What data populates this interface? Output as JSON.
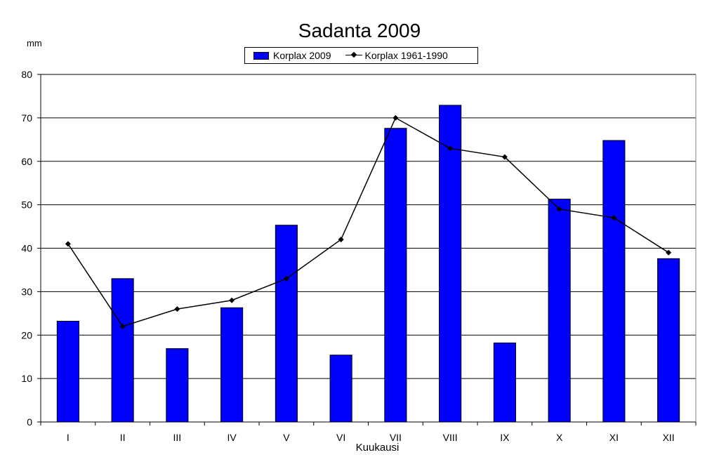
{
  "chart_data": {
    "type": "bar",
    "title": "Sadanta  2009",
    "ylabel": "mm",
    "xlabel": "Kuukausi",
    "ylim": [
      0,
      80
    ],
    "yticks": [
      0,
      10,
      20,
      30,
      40,
      50,
      60,
      70,
      80
    ],
    "grid": true,
    "legend_position": "top-center",
    "categories": [
      "I",
      "II",
      "III",
      "IV",
      "V",
      "VI",
      "VII",
      "VIII",
      "IX",
      "X",
      "XI",
      "XII"
    ],
    "series": [
      {
        "name": "Korplax 2009",
        "type": "bar",
        "color": "#0000ff",
        "values": [
          23.2,
          33,
          16.9,
          26.3,
          45.3,
          15.4,
          67.6,
          72.9,
          18.2,
          51.3,
          64.8,
          37.6
        ]
      },
      {
        "name": "Korplax 1961-1990",
        "type": "line",
        "color": "#000000",
        "marker": "diamond",
        "values": [
          41,
          22,
          26,
          28,
          33,
          42,
          70,
          63,
          61,
          49,
          47,
          39
        ]
      }
    ]
  }
}
